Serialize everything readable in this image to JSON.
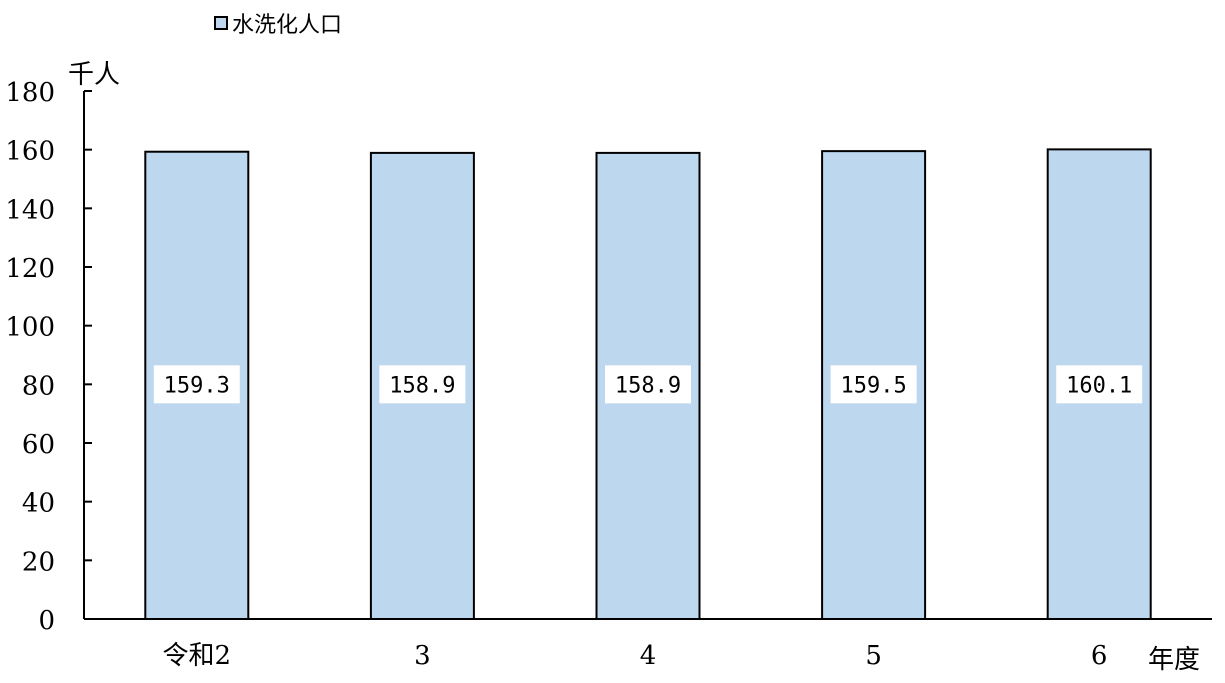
{
  "chart_data": {
    "type": "bar",
    "legend": {
      "label": "水洗化人口",
      "placement": "top-left"
    },
    "ylabel": "千人",
    "xlabel": "年度",
    "categories": [
      "令和2",
      "3",
      "4",
      "5",
      "6"
    ],
    "series": [
      {
        "name": "水洗化人口",
        "values": [
          159.3,
          158.9,
          158.9,
          159.5,
          160.1
        ],
        "labels": [
          "159.3",
          "158.9",
          "158.9",
          "159.5",
          "160.1"
        ]
      }
    ],
    "ylim": [
      0,
      180
    ],
    "yticks": [
      0,
      20,
      40,
      60,
      80,
      100,
      120,
      140,
      160,
      180
    ],
    "grid": false,
    "colors": {
      "bar_fill": "#bdd7ee",
      "bar_stroke": "#000000",
      "axis": "#000000",
      "label_bg": "#ffffff"
    }
  }
}
